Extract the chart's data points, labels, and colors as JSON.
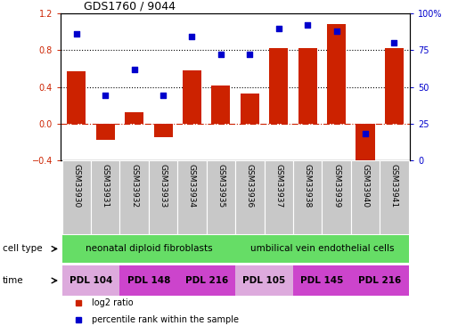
{
  "title": "GDS1760 / 9044",
  "samples": [
    "GSM33930",
    "GSM33931",
    "GSM33932",
    "GSM33933",
    "GSM33934",
    "GSM33935",
    "GSM33936",
    "GSM33937",
    "GSM33938",
    "GSM33939",
    "GSM33940",
    "GSM33941"
  ],
  "log2_ratio": [
    0.57,
    -0.18,
    0.12,
    -0.15,
    0.58,
    0.41,
    0.33,
    0.82,
    0.82,
    1.08,
    -0.42,
    0.82
  ],
  "percentile": [
    86,
    44,
    62,
    44,
    84,
    72,
    72,
    90,
    92,
    88,
    18,
    80
  ],
  "bar_color": "#cc2200",
  "dot_color": "#0000cc",
  "left_ylim": [
    -0.4,
    1.2
  ],
  "right_ylim": [
    0,
    100
  ],
  "left_yticks": [
    -0.4,
    0.0,
    0.4,
    0.8,
    1.2
  ],
  "right_yticks": [
    0,
    25,
    50,
    75,
    100
  ],
  "right_yticklabels": [
    "0",
    "25",
    "50",
    "75",
    "100%"
  ],
  "hline_y": [
    0.4,
    0.8
  ],
  "zero_line_y": 0.0,
  "legend_labels": [
    "log2 ratio",
    "percentile rank within the sample"
  ],
  "bg_color": "#ffffff",
  "sample_bg": "#c8c8c8",
  "cell_type_color": "#66dd66",
  "time_color_light": "#ddaadd",
  "time_color_dark": "#cc44cc",
  "time_groups": [
    {
      "label": "PDL 104",
      "cols": [
        0,
        1
      ],
      "color": "light"
    },
    {
      "label": "PDL 148",
      "cols": [
        2,
        3
      ],
      "color": "dark"
    },
    {
      "label": "PDL 216",
      "cols": [
        4,
        5
      ],
      "color": "dark"
    },
    {
      "label": "PDL 105",
      "cols": [
        6,
        7
      ],
      "color": "light"
    },
    {
      "label": "PDL 145",
      "cols": [
        8,
        9
      ],
      "color": "dark"
    },
    {
      "label": "PDL 216",
      "cols": [
        10,
        11
      ],
      "color": "dark"
    }
  ],
  "cell_groups": [
    {
      "label": "neonatal diploid fibroblasts",
      "cols": [
        0,
        5
      ]
    },
    {
      "label": "umbilical vein endothelial cells",
      "cols": [
        6,
        11
      ]
    }
  ]
}
